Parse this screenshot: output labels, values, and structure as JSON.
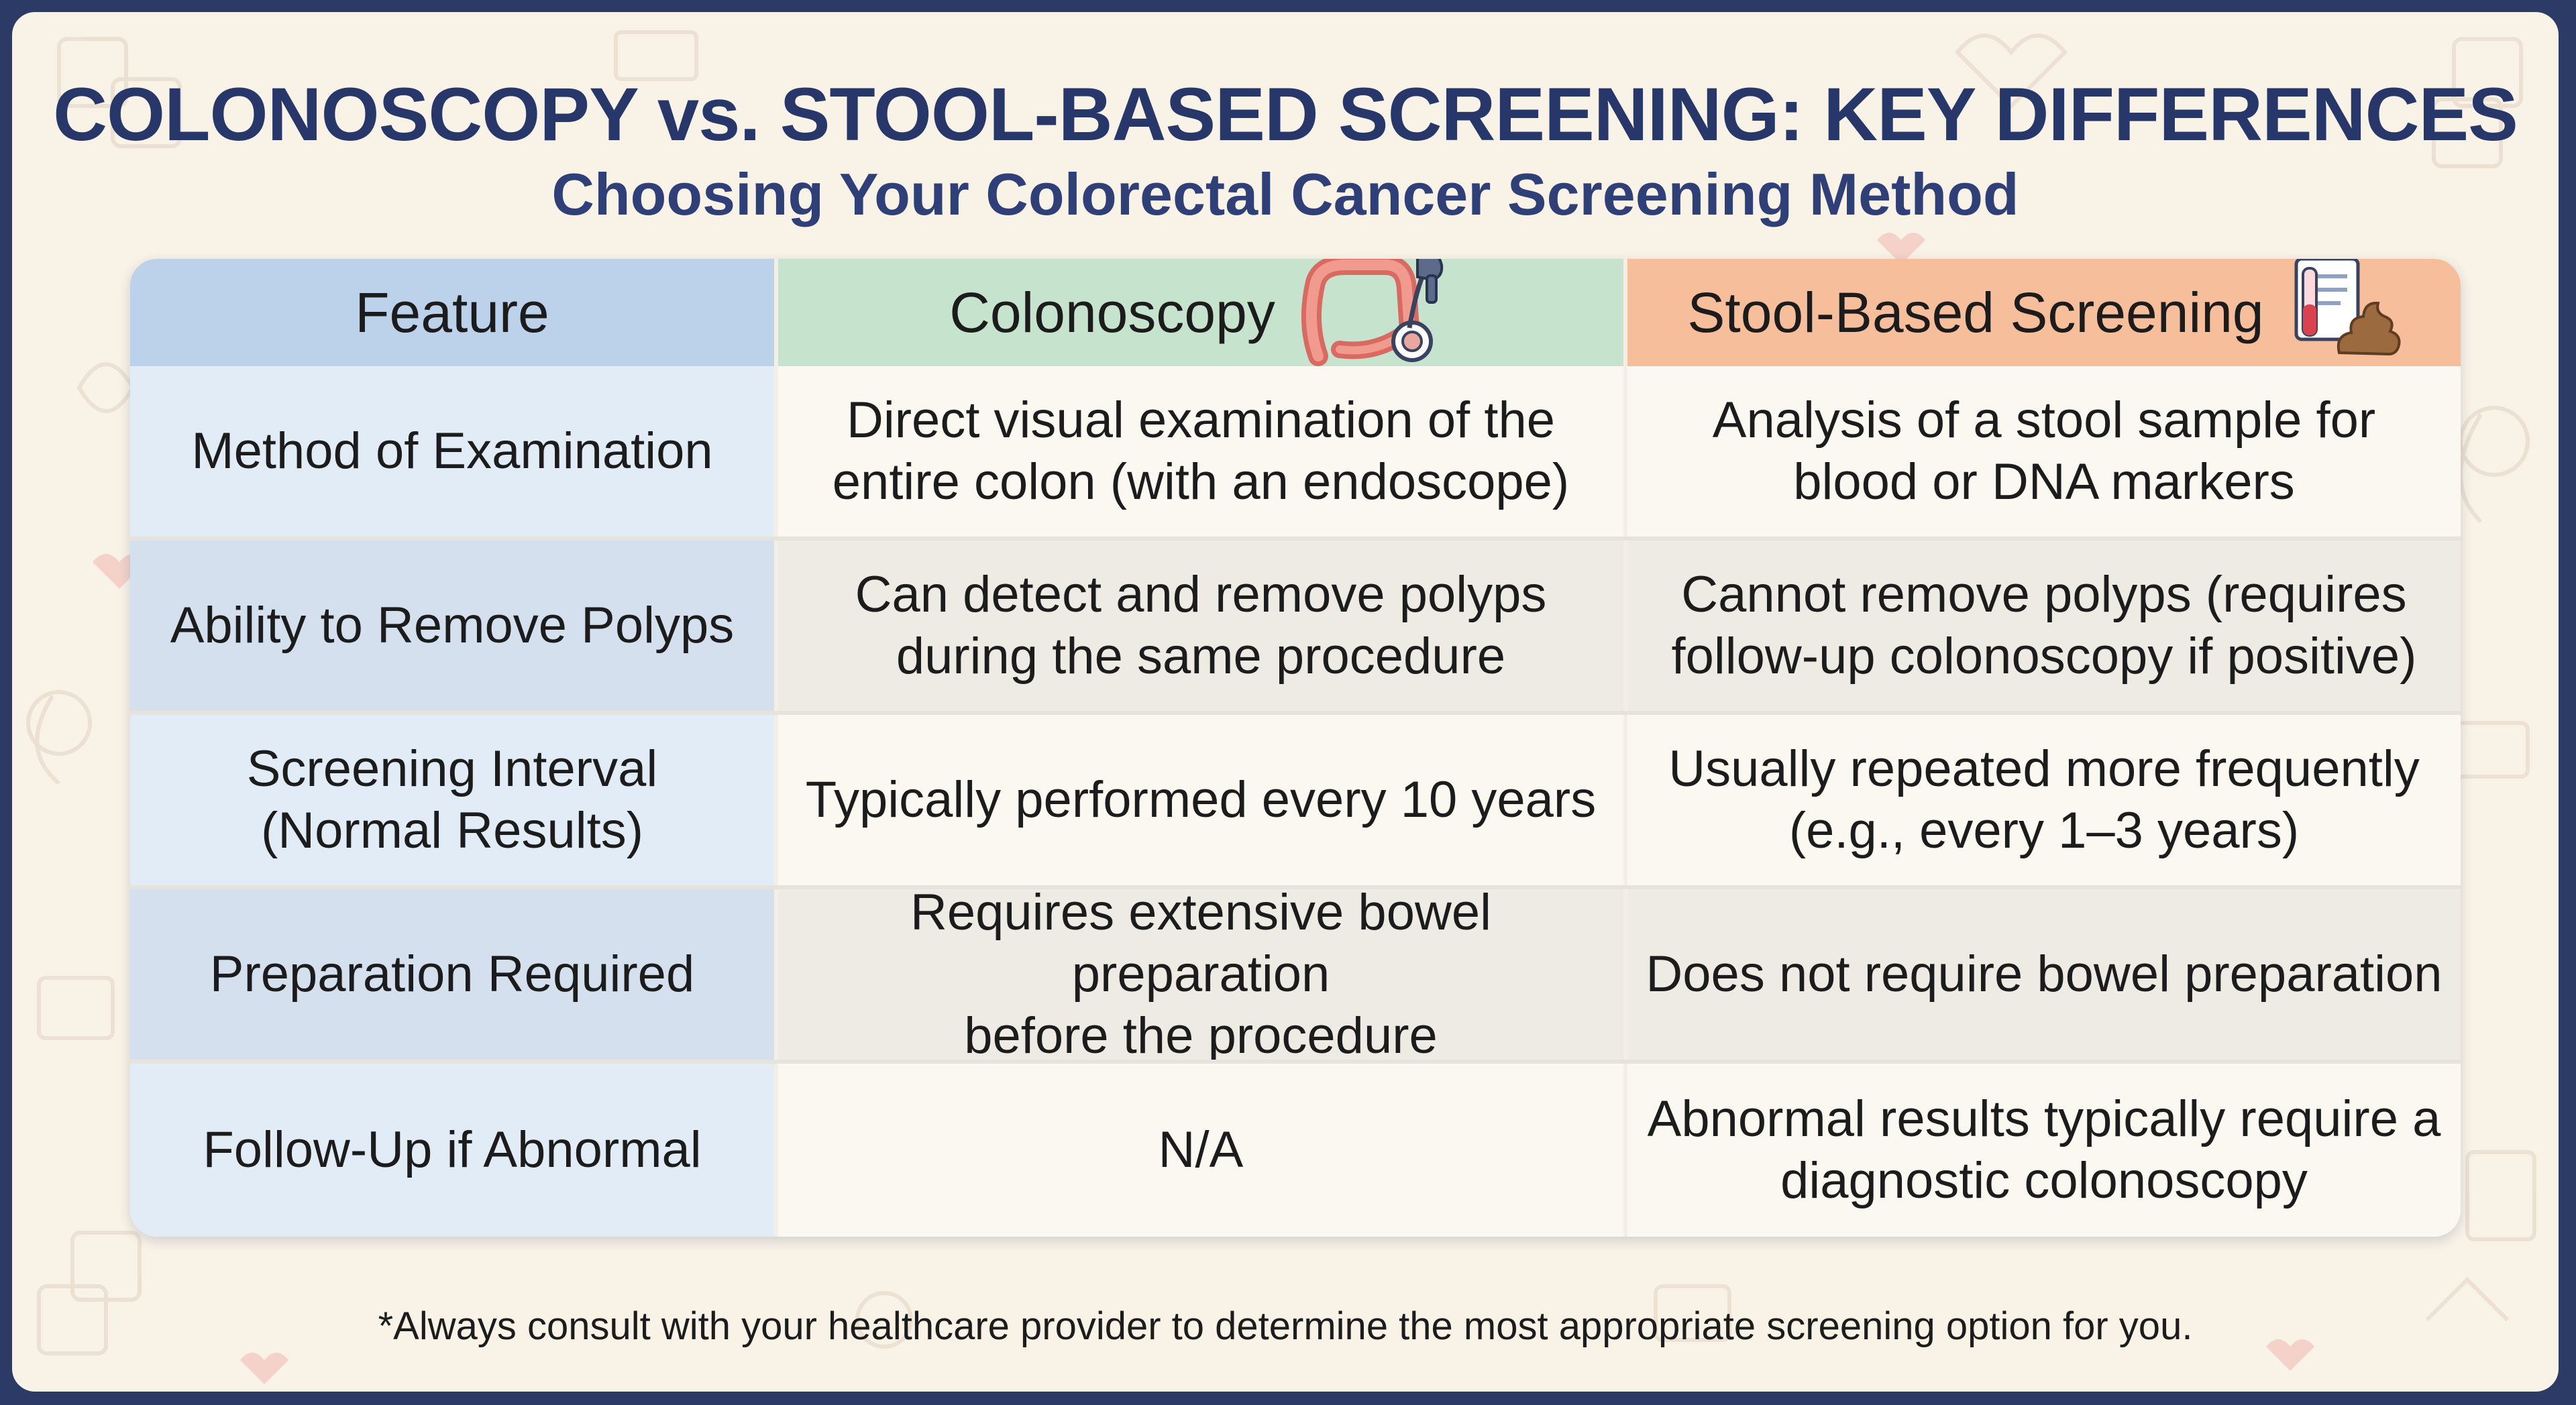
{
  "header": {
    "title": "COLONOSCOPY vs. STOOL-BASED SCREENING: KEY DIFFERENCES",
    "subtitle": "Choosing Your Colorectal Cancer Screening Method"
  },
  "table": {
    "columns": [
      "Feature",
      "Colonoscopy",
      "Stool-Based Screening"
    ],
    "column_icons": [
      "",
      "colon-endoscope-icon",
      "stool-sample-test-icon"
    ],
    "rows": [
      {
        "feature": "Method of Examination",
        "colonoscopy": [
          "Direct visual examination of the",
          "entire colon (with an endoscope)"
        ],
        "stool": [
          "Analysis of a stool sample for",
          "blood or DNA markers"
        ]
      },
      {
        "feature": "Ability to Remove Polyps",
        "colonoscopy": [
          "Can detect and remove polyps",
          "during the same procedure"
        ],
        "stool": [
          "Cannot remove polyps (requires",
          "follow-up colonoscopy if positive)"
        ]
      },
      {
        "feature": "Screening Interval\n(Normal Results)",
        "colonoscopy": [
          "Typically performed every 10 years"
        ],
        "stool": [
          "Usually repeated more frequently",
          "(e.g., every 1–3 years)"
        ]
      },
      {
        "feature": "Preparation Required",
        "colonoscopy": [
          "Requires extensive bowel preparation",
          "before the procedure"
        ],
        "stool": [
          "Does not require bowel preparation"
        ]
      },
      {
        "feature": "Follow-Up if Abnormal",
        "colonoscopy": [
          "N/A"
        ],
        "stool": [
          "Abnormal results typically require a",
          "diagnostic colonoscopy"
        ]
      }
    ]
  },
  "footnote": "*Always consult with your healthcare provider to determine the most appropriate screening option for you.",
  "colors": {
    "page_border": "#2c3a66",
    "background": "#f8f2e7",
    "title": "#27376a",
    "feature_header": "#bcd2ea",
    "colonoscopy_header": "#c5e3cd",
    "stool_header": "#f7be9c"
  }
}
